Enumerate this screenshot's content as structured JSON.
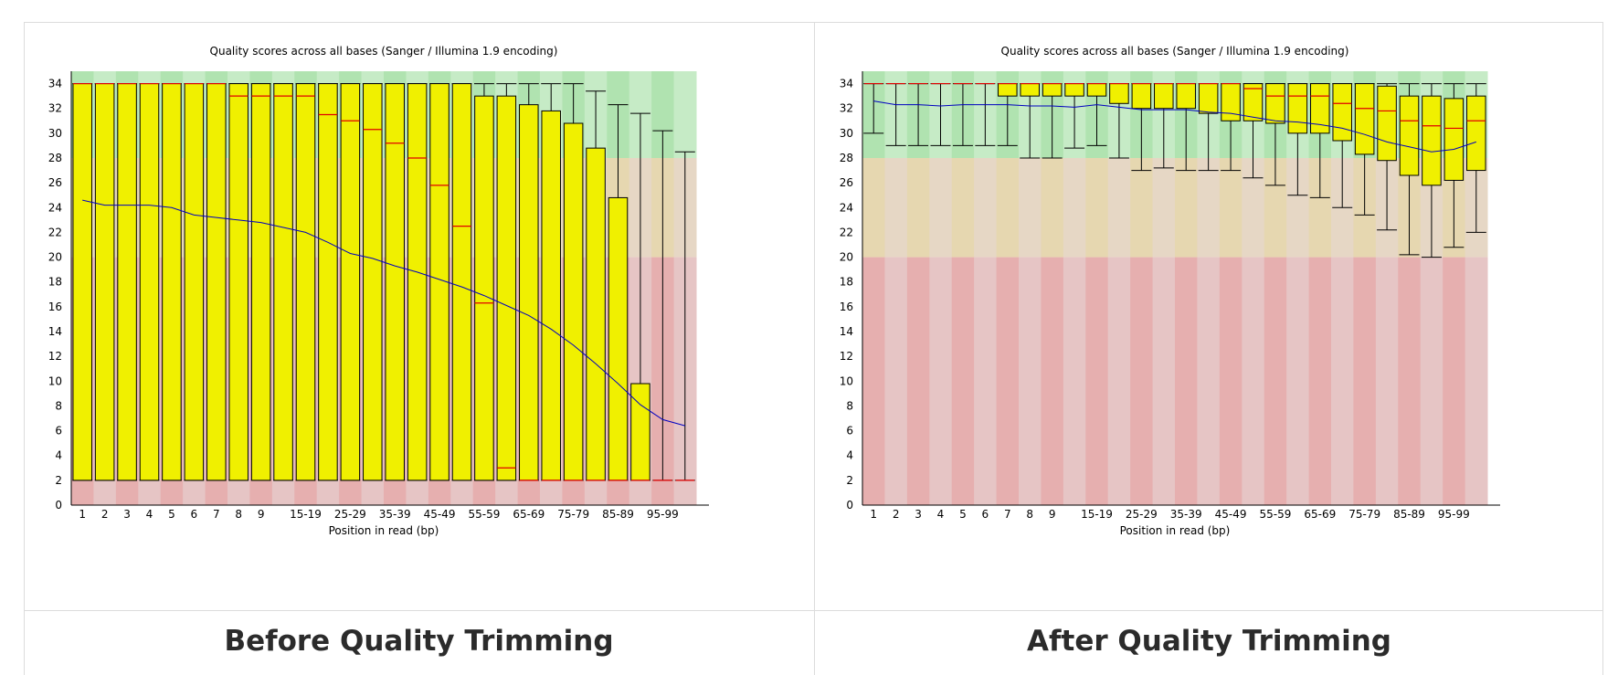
{
  "captions": {
    "before": "Before Quality Trimming",
    "after": "After Quality Trimming"
  },
  "colors": {
    "good_dark": "#b0e3b0",
    "good_light": "#c6ebc6",
    "warn_dark": "#e6d7b0",
    "warn_light": "#e6d7c5",
    "bad_dark": "#e6afaf",
    "bad_light": "#e6c5c5",
    "box": "#f0f000",
    "median": "#e00000",
    "mean": "#0000c0"
  },
  "chart_data": [
    {
      "type": "box",
      "title": "Quality scores across all bases (Sanger / Illumina 1.9 encoding)",
      "xlabel": "Position in read (bp)",
      "ylabel": "",
      "ylim": [
        0,
        35
      ],
      "yticks": [
        0,
        2,
        4,
        6,
        8,
        10,
        12,
        14,
        16,
        18,
        20,
        22,
        24,
        26,
        28,
        30,
        32,
        34
      ],
      "zones": {
        "bad": [
          0,
          20
        ],
        "warn": [
          20,
          28
        ],
        "good": [
          28,
          35
        ]
      },
      "categories": [
        "1",
        "2",
        "3",
        "4",
        "5",
        "6",
        "7",
        "8",
        "9",
        "10-14",
        "15-19",
        "20-24",
        "25-29",
        "30-34",
        "35-39",
        "40-44",
        "45-49",
        "50-54",
        "55-59",
        "60-64",
        "65-69",
        "70-74",
        "75-79",
        "80-84",
        "85-89",
        "90-94",
        "95-99",
        "100-101"
      ],
      "xtick_labels": [
        "1",
        "2",
        "3",
        "4",
        "5",
        "6",
        "7",
        "8",
        "9",
        "",
        "15-19",
        "",
        "25-29",
        "",
        "35-39",
        "",
        "45-49",
        "",
        "55-59",
        "",
        "65-69",
        "",
        "75-79",
        "",
        "85-89",
        "",
        "95-99",
        ""
      ],
      "q1": [
        2,
        2,
        2,
        2,
        2,
        2,
        2,
        2,
        2,
        2,
        2,
        2,
        2,
        2,
        2,
        2,
        2,
        2,
        2,
        2,
        2,
        2,
        2,
        2,
        2,
        2,
        2,
        2
      ],
      "median": [
        34,
        34,
        34,
        34,
        34,
        34,
        34,
        33,
        33,
        33,
        33,
        31.5,
        31,
        30.3,
        29.2,
        28,
        25.8,
        22.5,
        16.3,
        3,
        2,
        2,
        2,
        2,
        2,
        2,
        2,
        2
      ],
      "q3": [
        34,
        34,
        34,
        34,
        34,
        34,
        34,
        34,
        34,
        34,
        34,
        34,
        34,
        34,
        34,
        34,
        34,
        34,
        33,
        33,
        32.3,
        31.8,
        30.8,
        28.8,
        24.8,
        9.8,
        2,
        2
      ],
      "upper": [
        34,
        34,
        34,
        34,
        34,
        34,
        34,
        34,
        34,
        34,
        34,
        34,
        34,
        34,
        34,
        34,
        34,
        34,
        34,
        34,
        34,
        34,
        34,
        33.4,
        32.3,
        31.6,
        30.2,
        28.5
      ],
      "lower": [
        2,
        2,
        2,
        2,
        2,
        2,
        2,
        2,
        2,
        2,
        2,
        2,
        2,
        2,
        2,
        2,
        2,
        2,
        2,
        2,
        2,
        2,
        2,
        2,
        2,
        2,
        2,
        2
      ],
      "mean": [
        24.6,
        24.2,
        24.2,
        24.2,
        24.0,
        23.4,
        23.2,
        23.0,
        22.8,
        22.4,
        22.0,
        21.2,
        20.3,
        19.9,
        19.3,
        18.8,
        18.2,
        17.6,
        16.9,
        16.1,
        15.3,
        14.2,
        12.9,
        11.4,
        9.8,
        8.1,
        6.9,
        6.4
      ]
    },
    {
      "type": "box",
      "title": "Quality scores across all bases (Sanger / Illumina 1.9 encoding)",
      "xlabel": "Position in read (bp)",
      "ylabel": "",
      "ylim": [
        0,
        35
      ],
      "yticks": [
        0,
        2,
        4,
        6,
        8,
        10,
        12,
        14,
        16,
        18,
        20,
        22,
        24,
        26,
        28,
        30,
        32,
        34
      ],
      "zones": {
        "bad": [
          0,
          20
        ],
        "warn": [
          20,
          28
        ],
        "good": [
          28,
          35
        ]
      },
      "categories": [
        "1",
        "2",
        "3",
        "4",
        "5",
        "6",
        "7",
        "8",
        "9",
        "10-14",
        "15-19",
        "20-24",
        "25-29",
        "30-34",
        "35-39",
        "40-44",
        "45-49",
        "50-54",
        "55-59",
        "60-64",
        "65-69",
        "70-74",
        "75-79",
        "80-84",
        "85-89",
        "90-94",
        "95-99",
        "100-101"
      ],
      "xtick_labels": [
        "1",
        "2",
        "3",
        "4",
        "5",
        "6",
        "7",
        "8",
        "9",
        "",
        "15-19",
        "",
        "25-29",
        "",
        "35-39",
        "",
        "45-49",
        "",
        "55-59",
        "",
        "65-69",
        "",
        "75-79",
        "",
        "85-89",
        "",
        "95-99",
        ""
      ],
      "q1": [
        34,
        34,
        34,
        34,
        34,
        34,
        33,
        33,
        33,
        33,
        33,
        32.4,
        32,
        32,
        32,
        31.6,
        31,
        31,
        30.8,
        30,
        30,
        29.4,
        28.3,
        27.8,
        26.6,
        25.8,
        26.2,
        27
      ],
      "median": [
        34,
        34,
        34,
        34,
        34,
        34,
        34,
        34,
        34,
        34,
        34,
        34,
        34,
        34,
        34,
        34,
        34,
        33.6,
        33,
        33,
        33,
        32.4,
        32,
        31.8,
        31,
        30.6,
        30.4,
        31
      ],
      "q3": [
        34,
        34,
        34,
        34,
        34,
        34,
        34,
        34,
        34,
        34,
        34,
        34,
        34,
        34,
        34,
        34,
        34,
        34,
        34,
        34,
        34,
        34,
        34,
        33.8,
        33,
        33,
        32.8,
        33
      ],
      "upper": [
        34,
        34,
        34,
        34,
        34,
        34,
        34,
        34,
        34,
        34,
        34,
        34,
        34,
        34,
        34,
        34,
        34,
        34,
        34,
        34,
        34,
        34,
        34,
        34,
        34,
        34,
        34,
        34
      ],
      "lower": [
        30,
        29,
        29,
        29,
        29,
        29,
        29,
        28,
        28,
        28.8,
        29,
        28,
        27,
        27.2,
        27,
        27,
        27,
        26.4,
        25.8,
        25,
        24.8,
        24,
        23.4,
        22.2,
        20.2,
        20,
        20.8,
        22
      ],
      "mean": [
        32.6,
        32.3,
        32.3,
        32.2,
        32.3,
        32.3,
        32.3,
        32.2,
        32.2,
        32.1,
        32.3,
        32.1,
        31.9,
        31.9,
        31.9,
        31.7,
        31.6,
        31.3,
        31.0,
        30.9,
        30.7,
        30.4,
        29.9,
        29.3,
        28.9,
        28.5,
        28.7,
        29.3
      ]
    }
  ]
}
